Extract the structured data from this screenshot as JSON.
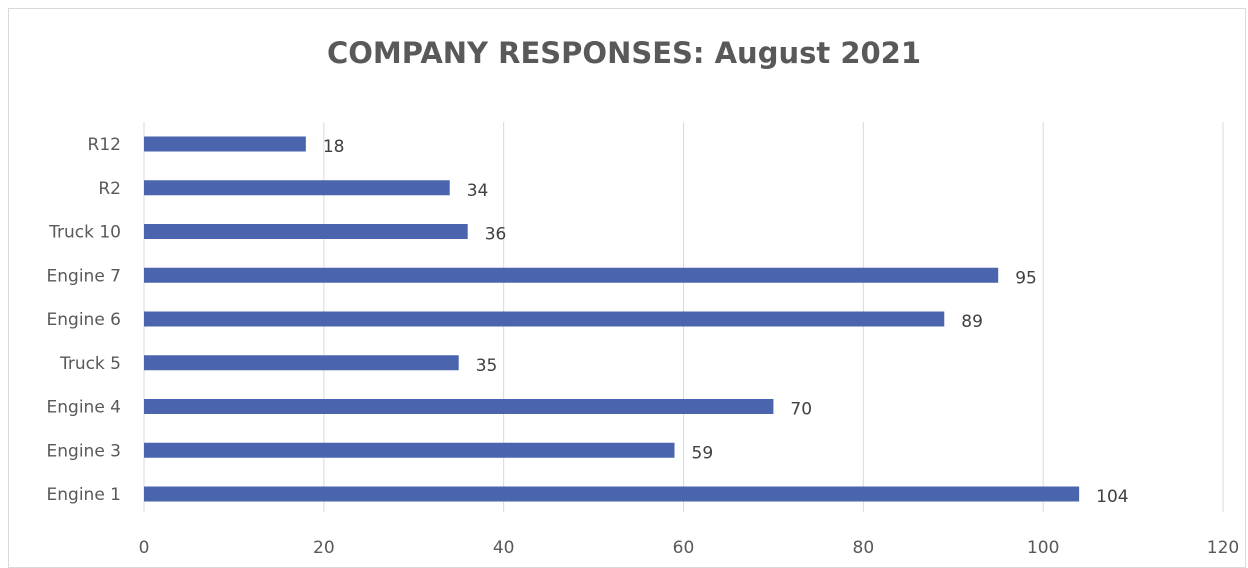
{
  "chart_data": {
    "type": "bar",
    "orientation": "horizontal",
    "title": "COMPANY RESPONSES: August 2021",
    "xlabel": "",
    "ylabel": "",
    "categories": [
      "Engine 1",
      "Engine 3",
      "Engine 4",
      "Truck 5",
      "Engine 6",
      "Engine 7",
      "Truck 10",
      "R2",
      "R12"
    ],
    "values": [
      104,
      59,
      70,
      35,
      89,
      95,
      36,
      34,
      18
    ],
    "xlim": [
      0,
      120
    ],
    "x_ticks": [
      "0",
      "20",
      "40",
      "60",
      "80",
      "100",
      "120"
    ],
    "grid": "vertical",
    "legend": "none",
    "data_labels": true,
    "bar_color": "#4a64ae"
  }
}
